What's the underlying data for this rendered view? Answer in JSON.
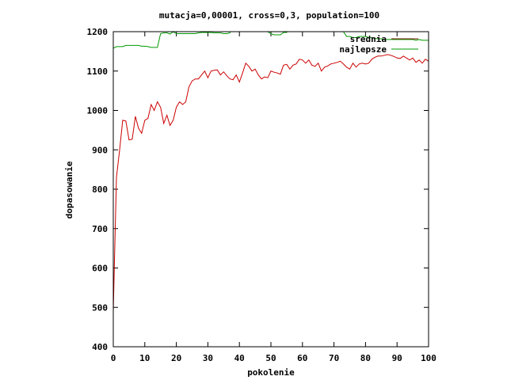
{
  "chart_data": {
    "type": "line",
    "title": "mutacja=0,00001, cross=0,3, population=100",
    "xlabel": "pokolenie",
    "ylabel": "dopasowanie",
    "xlim": [
      0,
      100
    ],
    "ylim": [
      400,
      1200
    ],
    "xticks": [
      "0",
      "10",
      "20",
      "30",
      "40",
      "50",
      "60",
      "70",
      "80",
      "90",
      "100"
    ],
    "yticks": [
      "400",
      "500",
      "600",
      "700",
      "800",
      "900",
      "1000",
      "1100",
      "1200"
    ],
    "grid": false,
    "legend_position": "top-right",
    "series": [
      {
        "name": "srednia",
        "color": "#cc0000",
        "legend_color": "#7a1a00",
        "x": [
          0,
          1,
          2,
          3,
          4,
          5,
          6,
          7,
          8,
          9,
          10,
          11,
          12,
          13,
          14,
          15,
          16,
          17,
          18,
          19,
          20,
          21,
          22,
          23,
          24,
          25,
          26,
          27,
          28,
          29,
          30,
          31,
          32,
          33,
          34,
          35,
          36,
          37,
          38,
          39,
          40,
          41,
          42,
          43,
          44,
          45,
          46,
          47,
          48,
          49,
          50,
          51,
          52,
          53,
          54,
          55,
          56,
          57,
          58,
          59,
          60,
          61,
          62,
          63,
          64,
          65,
          66,
          67,
          68,
          69,
          70,
          71,
          72,
          73,
          74,
          75,
          76,
          77,
          78,
          79,
          80,
          81,
          82,
          83,
          84,
          85,
          86,
          87,
          88,
          89,
          90,
          91,
          92,
          93,
          94,
          95,
          96,
          97,
          98,
          99,
          100
        ],
        "y": [
          490,
          830,
          900,
          975,
          973,
          925,
          927,
          985,
          955,
          942,
          975,
          980,
          1015,
          1000,
          1022,
          1008,
          967,
          988,
          962,
          975,
          1008,
          1022,
          1015,
          1022,
          1060,
          1075,
          1080,
          1080,
          1090,
          1100,
          1083,
          1100,
          1102,
          1103,
          1090,
          1098,
          1088,
          1080,
          1078,
          1090,
          1072,
          1095,
          1120,
          1112,
          1100,
          1105,
          1090,
          1080,
          1085,
          1083,
          1100,
          1097,
          1095,
          1092,
          1115,
          1117,
          1105,
          1115,
          1118,
          1130,
          1128,
          1120,
          1128,
          1115,
          1112,
          1120,
          1100,
          1110,
          1113,
          1118,
          1120,
          1122,
          1125,
          1118,
          1110,
          1105,
          1120,
          1110,
          1118,
          1120,
          1118,
          1120,
          1130,
          1135,
          1138,
          1138,
          1140,
          1142,
          1140,
          1137,
          1133,
          1132,
          1138,
          1133,
          1128,
          1133,
          1122,
          1128,
          1120,
          1130,
          1125
        ]
      },
      {
        "name": "najlepsze",
        "color": "#009900",
        "x": [
          0,
          1,
          2,
          3,
          4,
          5,
          6,
          7,
          8,
          9,
          10,
          11,
          12,
          13,
          14,
          15,
          16,
          17,
          18,
          19,
          20,
          21,
          22,
          23,
          24,
          25,
          26,
          27,
          28,
          29,
          30,
          31,
          32,
          33,
          34,
          35,
          36,
          37,
          38,
          39,
          40,
          41,
          42,
          43,
          44,
          45,
          46,
          47,
          48,
          49,
          50,
          51,
          52,
          53,
          54,
          55,
          56,
          57,
          58,
          59,
          60,
          61,
          62,
          63,
          64,
          65,
          66,
          67,
          68,
          69,
          70,
          71,
          72,
          73,
          74,
          75,
          76,
          77,
          78,
          79,
          80,
          81,
          82,
          83,
          84,
          85,
          86,
          87,
          88,
          89,
          90,
          91,
          92,
          93,
          94,
          95,
          96,
          97,
          98,
          99,
          100
        ],
        "y": [
          1158,
          1162,
          1162,
          1162,
          1165,
          1165,
          1165,
          1165,
          1165,
          1163,
          1163,
          1162,
          1160,
          1160,
          1160,
          1195,
          1197,
          1197,
          1194,
          1200,
          1195,
          1195,
          1195,
          1195,
          1195,
          1195,
          1195,
          1197,
          1198,
          1198,
          1198,
          1198,
          1197,
          1197,
          1197,
          1195,
          1195,
          1197,
          1225,
          1225,
          1225,
          1225,
          1225,
          1225,
          1225,
          1225,
          1225,
          1225,
          1225,
          1200,
          1195,
          1192,
          1192,
          1192,
          1198,
          1198,
          1210,
          1225,
          1225,
          1225,
          1225,
          1225,
          1225,
          1225,
          1225,
          1225,
          1225,
          1225,
          1225,
          1225,
          1225,
          1225,
          1225,
          1200,
          1188,
          1188,
          1185,
          1185,
          1188,
          1188,
          1188,
          1185,
          1185,
          1183,
          1182,
          1182,
          1180,
          1180,
          1180,
          1180,
          1180,
          1180,
          1180,
          1180,
          1180,
          1180,
          1178,
          1180,
          1178,
          1178,
          1178
        ]
      }
    ]
  }
}
